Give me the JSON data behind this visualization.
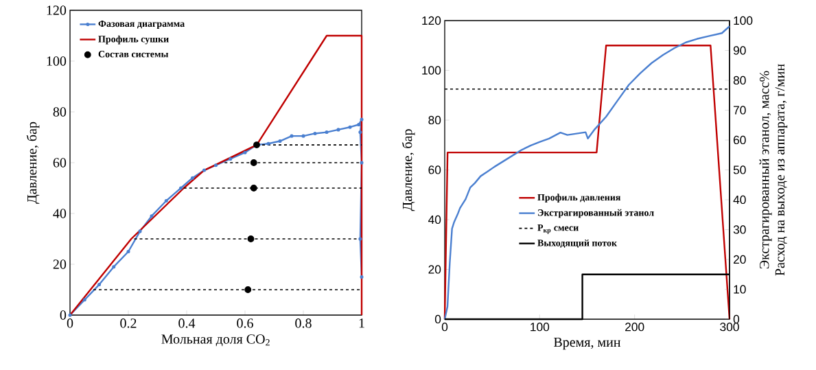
{
  "chart_data": [
    {
      "type": "line",
      "xlabel": "Мольная доля CO$_{2}$",
      "ylabel": "Давление, бар",
      "xlim": [
        0,
        1
      ],
      "ylim": [
        0,
        120
      ],
      "xticks": [
        0,
        0.2,
        0.4,
        0.6,
        0.8,
        1
      ],
      "yticks": [
        0,
        20,
        40,
        60,
        80,
        100,
        120
      ],
      "legend": "top left",
      "series": [
        {
          "name": "Фазовая диаграмма",
          "color": "#4a7fd0",
          "marker": "circle",
          "x": [
            0,
            0.05,
            0.1,
            0.15,
            0.2,
            0.24,
            0.28,
            0.33,
            0.38,
            0.42,
            0.46,
            0.5,
            0.55,
            0.6,
            0.64,
            0.68,
            0.72,
            0.76,
            0.8,
            0.84,
            0.88,
            0.92,
            0.96,
            0.99,
            1,
            0.995,
            1,
            0.995,
            1
          ],
          "values": [
            0,
            6,
            12,
            19,
            25,
            33,
            39,
            45,
            50,
            54,
            57,
            59,
            61.5,
            64,
            67,
            67.5,
            68.5,
            70.5,
            70.5,
            71.5,
            72,
            73,
            74,
            75,
            77,
            72,
            60,
            30,
            15
          ]
        },
        {
          "name": "Профиль сушки",
          "color": "#c00000",
          "x": [
            0,
            0.21,
            0.39,
            0.46,
            0.64,
            0.88,
            1,
            1
          ],
          "values": [
            0,
            30,
            50,
            57,
            67,
            110,
            110,
            0
          ]
        },
        {
          "color": "#000000",
          "line_style": "dashed",
          "x": [
            0.08,
            1
          ],
          "values": [
            10,
            10
          ]
        },
        {
          "color": "#000000",
          "line_style": "dashed",
          "x": [
            0.22,
            1
          ],
          "values": [
            30,
            30
          ]
        },
        {
          "color": "#000000",
          "line_style": "dashed",
          "x": [
            0.39,
            1
          ],
          "values": [
            50,
            50
          ]
        },
        {
          "color": "#000000",
          "line_style": "dashed",
          "x": [
            0.53,
            1
          ],
          "values": [
            60,
            60
          ]
        },
        {
          "color": "#000000",
          "line_style": "dashed",
          "x": [
            0.64,
            1
          ],
          "values": [
            67,
            67
          ]
        },
        {
          "name": "Состав системы",
          "type": "scatter",
          "marker": "circle",
          "color": "#000000",
          "x": [
            0.61,
            0.62,
            0.63,
            0.63,
            0.64
          ],
          "values": [
            10,
            30,
            50,
            60,
            67
          ]
        }
      ]
    },
    {
      "type": "line",
      "xlabel": "Время, мин",
      "ylabel": "Давление, бар",
      "y2label": [
        "Экстрагированный этанол, масс%",
        "Расход на выходе из аппарата, г/мин"
      ],
      "xlim": [
        0,
        300
      ],
      "ylim": [
        0,
        120
      ],
      "y2lim": [
        0,
        100
      ],
      "xticks": [
        0,
        100,
        200,
        300
      ],
      "yticks": [
        0,
        20,
        40,
        60,
        80,
        100,
        120
      ],
      "y2ticks": [
        0,
        10,
        20,
        30,
        40,
        50,
        60,
        70,
        80,
        90,
        100
      ],
      "legend": "center",
      "series": [
        {
          "name": "Профиль давления",
          "color": "#c00000",
          "x": [
            0,
            3,
            160,
            170,
            280,
            300
          ],
          "values": [
            0,
            67,
            67,
            110,
            110,
            0
          ]
        },
        {
          "name": "Экстрагированный этанол",
          "color": "#4a7fd0",
          "axis": "y2",
          "x": [
            0,
            2.9,
            5.3,
            7.7,
            10,
            13.7,
            16.1,
            22,
            26.9,
            31.8,
            37.8,
            45,
            52.2,
            61.8,
            71.4,
            81.1,
            90.7,
            100.3,
            109.9,
            121.9,
            129.2,
            148.4,
            150.8,
            158,
            170,
            182,
            194,
            206,
            218,
            230,
            242,
            254,
            266,
            278,
            292,
            300
          ],
          "values": [
            0,
            4.2,
            18.8,
            30.3,
            32.6,
            35.2,
            37.2,
            40.2,
            44.1,
            45.6,
            47.9,
            49.4,
            51,
            52.9,
            54.8,
            56.7,
            58.2,
            59.4,
            60.5,
            62.5,
            61.7,
            62.6,
            60.5,
            63.6,
            67.8,
            73.2,
            78.5,
            82.4,
            85.8,
            88.5,
            90.8,
            92.7,
            93.9,
            94.8,
            95.8,
            98.1
          ]
        },
        {
          "name": "P$_{кр}$ смеси",
          "color": "#000000",
          "line_style": "dashed",
          "x": [
            0,
            300
          ],
          "values": [
            92.5,
            92.5
          ]
        },
        {
          "name": "Выходящий поток",
          "type": "step",
          "color": "#000000",
          "axis": "y2",
          "x": [
            0,
            145,
            300
          ],
          "values": [
            0,
            15,
            15
          ]
        }
      ]
    }
  ]
}
